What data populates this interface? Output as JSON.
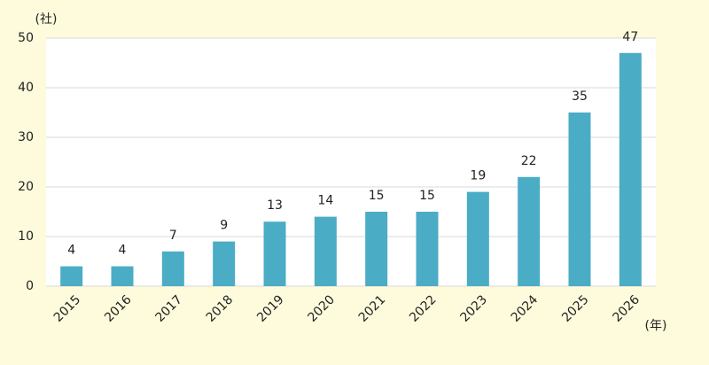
{
  "chart_data": {
    "type": "bar",
    "y_label": "(社)",
    "x_label": "(年)",
    "categories": [
      "2015",
      "2016",
      "2017",
      "2018",
      "2019",
      "2020",
      "2021",
      "2022",
      "2023",
      "2024",
      "2025",
      "2026"
    ],
    "values": [
      4,
      4,
      7,
      9,
      13,
      14,
      15,
      15,
      19,
      22,
      35,
      47
    ],
    "color": "#4bacc6",
    "ylim": [
      0,
      50
    ],
    "yticks": [
      0,
      10,
      20,
      30,
      40,
      50
    ],
    "grid": true
  }
}
